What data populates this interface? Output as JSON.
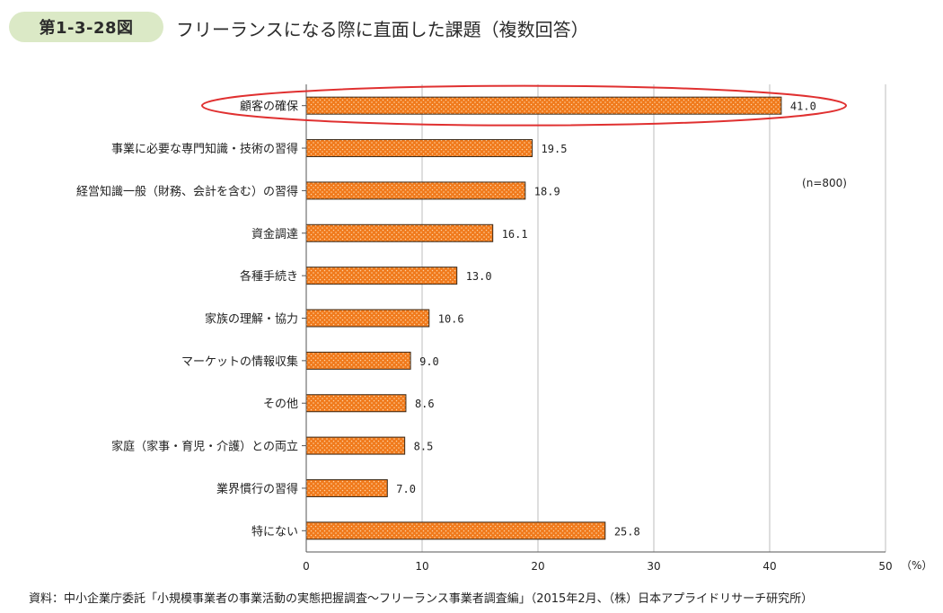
{
  "header": {
    "figure_number": "第1-3-28図",
    "title": "フリーランスになる際に直面した課題（複数回答）"
  },
  "chart_data": {
    "type": "bar",
    "orientation": "horizontal",
    "categories": [
      "顧客の確保",
      "事業に必要な専門知識・技術の習得",
      "経営知識一般（財務、会計を含む）の習得",
      "資金調達",
      "各種手続き",
      "家族の理解・協力",
      "マーケットの情報収集",
      "その他",
      "家庭（家事・育児・介護）との両立",
      "業界慣行の習得",
      "特にない"
    ],
    "values": [
      41.0,
      19.5,
      18.9,
      16.1,
      13.0,
      10.6,
      9.0,
      8.6,
      8.5,
      7.0,
      25.8
    ],
    "value_labels": [
      "41.0",
      "19.5",
      "18.9",
      "16.1",
      "13.0",
      "10.6",
      "9.0",
      "8.6",
      "8.5",
      "7.0",
      "25.8"
    ],
    "xlim": [
      0,
      50
    ],
    "xticks": [
      "0",
      "10",
      "20",
      "30",
      "40",
      "50"
    ],
    "unit": "（%）",
    "annotation": "(n=800)",
    "highlighted_category": "顧客の確保",
    "grid": true,
    "bar_color": "#f07a1c",
    "highlight_color": "#e03030"
  },
  "footer": {
    "source": "資料：中小企業庁委託「小規模事業者の事業活動の実態把握調査～フリーランス事業者調査編」（2015年2月、（株）日本アプライドリサーチ研究所）"
  }
}
